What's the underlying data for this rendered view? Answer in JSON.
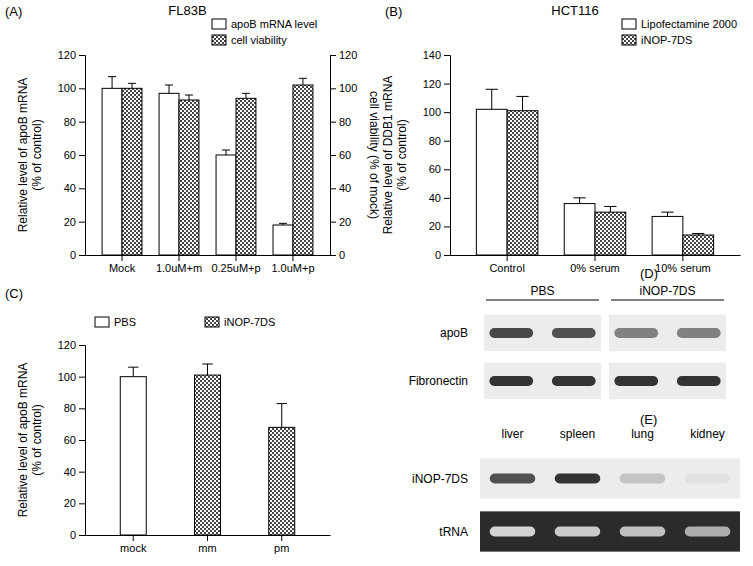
{
  "chart_data": [
    {
      "type": "bar",
      "panel_label": "(A)",
      "title": "FL83B",
      "categories": [
        "Mock",
        "1.0uM+m",
        "0.25uM+p",
        "1.0uM+p"
      ],
      "series": [
        {
          "name": "apoB mRNA level",
          "color": "#ffffff",
          "values": [
            100,
            97,
            60,
            18
          ],
          "errors": [
            7,
            5,
            3,
            1
          ]
        },
        {
          "name": "cell viability",
          "color": "#444444",
          "marker": "checkered",
          "axis": "y2",
          "values": [
            100,
            93,
            94,
            102
          ],
          "errors": [
            3,
            3,
            3,
            4
          ]
        }
      ],
      "ylabel": [
        "Relative level of apoB mRNA",
        "(% of control)"
      ],
      "y2label": "cell viability  (%  of mock)",
      "ylim": [
        0,
        120
      ],
      "yticks": [
        0,
        20,
        40,
        60,
        80,
        100,
        120
      ],
      "y2lim": [
        0,
        120
      ],
      "y2ticks": [
        0,
        20,
        40,
        60,
        80,
        100,
        120
      ],
      "legend": "upper right"
    },
    {
      "type": "bar",
      "panel_label": "(B)",
      "title": "HCT116",
      "categories": [
        "Control",
        "0% serum",
        "10% serum"
      ],
      "series": [
        {
          "name": "Lipofectamine 2000",
          "color": "#ffffff",
          "values": [
            102,
            36,
            27
          ],
          "errors": [
            14,
            4,
            3
          ]
        },
        {
          "name": "iNOP-7DS",
          "color": "#444444",
          "marker": "checkered",
          "values": [
            101,
            30,
            14
          ],
          "errors": [
            10,
            4,
            1
          ]
        }
      ],
      "ylabel": [
        "Relative level of DDB1 mRNA",
        "(% of control)"
      ],
      "ylim": [
        0,
        140
      ],
      "yticks": [
        0,
        20,
        40,
        60,
        80,
        100,
        120,
        140
      ],
      "legend": "upper right"
    },
    {
      "type": "bar",
      "panel_label": "(C)",
      "categories": [
        "mock",
        "mm",
        "pm"
      ],
      "series": [
        {
          "name": "PBS",
          "color": "#ffffff",
          "values": [
            100,
            null,
            null
          ],
          "errors": [
            6,
            null,
            null
          ]
        },
        {
          "name": "iNOP-7DS",
          "color": "#444444",
          "marker": "checkered",
          "values": [
            null,
            101,
            68
          ],
          "errors": [
            null,
            7,
            15
          ]
        }
      ],
      "ylabel": [
        "Relative level of apoB mRNA",
        "(% of control)"
      ],
      "ylim": [
        0,
        120
      ],
      "yticks": [
        0,
        20,
        40,
        60,
        80,
        100,
        120
      ],
      "legend": "top"
    },
    {
      "type": "blot",
      "panel_label": "(D)",
      "lanes": [
        "PBS",
        "PBS",
        "iNOP-7DS",
        "iNOP-7DS"
      ],
      "rows": [
        {
          "name": "apoB",
          "color": "#2a2a2a",
          "values": [
            0.85,
            0.8,
            0.55,
            0.55
          ]
        },
        {
          "name": "Fibronectin",
          "color": "#2a2a2a",
          "values": [
            0.95,
            0.95,
            0.95,
            0.95
          ]
        }
      ]
    },
    {
      "type": "blot",
      "panel_label": "(E)",
      "lanes": [
        "liver",
        "spleen",
        "lung",
        "kidney"
      ],
      "rows": [
        {
          "name": "iNOP-7DS",
          "color": "#2a2a2a",
          "values": [
            0.8,
            0.95,
            0.2,
            0.05
          ]
        },
        {
          "name": "tRNA",
          "color": "#e6e6e6",
          "values": [
            0.9,
            0.85,
            0.8,
            0.7
          ]
        }
      ]
    }
  ]
}
